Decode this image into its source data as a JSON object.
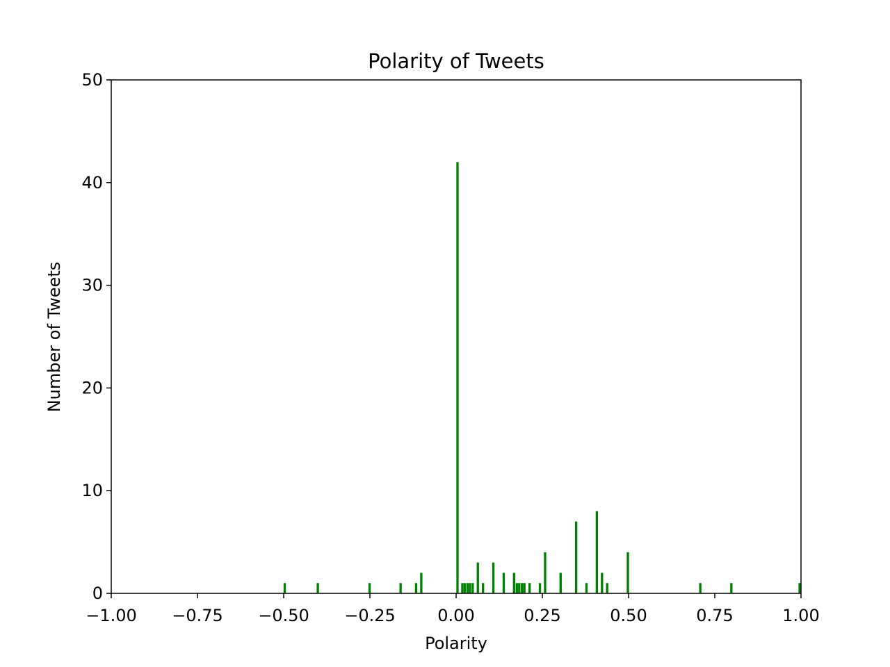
{
  "chart_data": {
    "type": "bar",
    "title": "Polarity of Tweets",
    "xlabel": "Polarity",
    "ylabel": "Number of Tweets",
    "xlim": [
      -1.0,
      1.0
    ],
    "ylim": [
      0,
      50
    ],
    "xticks": [
      "−1.00",
      "−0.75",
      "−0.50",
      "−0.25",
      "0.00",
      "0.25",
      "0.50",
      "0.75",
      "1.00"
    ],
    "xtick_values": [
      -1.0,
      -0.75,
      -0.5,
      -0.25,
      0.0,
      0.25,
      0.5,
      0.75,
      1.0
    ],
    "yticks": [
      "0",
      "10",
      "20",
      "30",
      "40",
      "50"
    ],
    "ytick_values": [
      0,
      10,
      20,
      30,
      40,
      50
    ],
    "bin_width": 0.0067,
    "grid": false,
    "bar_color": "#008000",
    "bars": [
      {
        "x": -0.497,
        "count": 1
      },
      {
        "x": -0.401,
        "count": 1
      },
      {
        "x": -0.251,
        "count": 1
      },
      {
        "x": -0.161,
        "count": 1
      },
      {
        "x": -0.116,
        "count": 1
      },
      {
        "x": -0.101,
        "count": 2
      },
      {
        "x": 0.004,
        "count": 42
      },
      {
        "x": 0.018,
        "count": 1
      },
      {
        "x": 0.025,
        "count": 1
      },
      {
        "x": 0.033,
        "count": 1
      },
      {
        "x": 0.04,
        "count": 1
      },
      {
        "x": 0.048,
        "count": 1
      },
      {
        "x": 0.063,
        "count": 3
      },
      {
        "x": 0.078,
        "count": 1
      },
      {
        "x": 0.108,
        "count": 3
      },
      {
        "x": 0.138,
        "count": 2
      },
      {
        "x": 0.168,
        "count": 2
      },
      {
        "x": 0.176,
        "count": 1
      },
      {
        "x": 0.183,
        "count": 1
      },
      {
        "x": 0.191,
        "count": 1
      },
      {
        "x": 0.198,
        "count": 1
      },
      {
        "x": 0.213,
        "count": 1
      },
      {
        "x": 0.243,
        "count": 1
      },
      {
        "x": 0.258,
        "count": 4
      },
      {
        "x": 0.303,
        "count": 2
      },
      {
        "x": 0.348,
        "count": 7
      },
      {
        "x": 0.378,
        "count": 1
      },
      {
        "x": 0.408,
        "count": 8
      },
      {
        "x": 0.423,
        "count": 2
      },
      {
        "x": 0.438,
        "count": 1
      },
      {
        "x": 0.498,
        "count": 4
      },
      {
        "x": 0.708,
        "count": 1
      },
      {
        "x": 0.798,
        "count": 1
      },
      {
        "x": 0.996,
        "count": 1
      }
    ]
  }
}
